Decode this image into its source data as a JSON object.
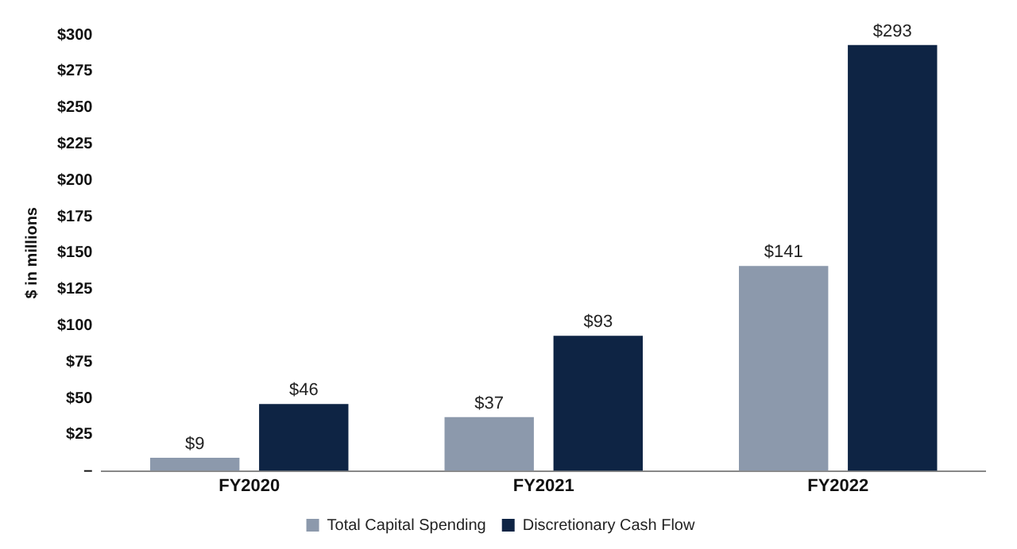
{
  "chart_data": {
    "type": "bar",
    "ylabel": "$ in millions",
    "categories": [
      "FY2020",
      "FY2021",
      "FY2022"
    ],
    "series": [
      {
        "name": "Total Capital Spending",
        "color": "#8c99ac",
        "values": [
          9,
          37,
          141
        ],
        "value_labels": [
          "$9",
          "$37",
          "$141"
        ]
      },
      {
        "name": "Discretionary Cash Flow",
        "color": "#0e2444",
        "values": [
          46,
          93,
          293
        ],
        "value_labels": [
          "$46",
          "$93",
          "$293"
        ]
      }
    ],
    "ylim": [
      0,
      300
    ],
    "yticks": [
      {
        "value": 0,
        "label": "–"
      },
      {
        "value": 25,
        "label": "$25"
      },
      {
        "value": 50,
        "label": "$50"
      },
      {
        "value": 75,
        "label": "$75"
      },
      {
        "value": 100,
        "label": "$100"
      },
      {
        "value": 125,
        "label": "$125"
      },
      {
        "value": 150,
        "label": "$150"
      },
      {
        "value": 175,
        "label": "$175"
      },
      {
        "value": 200,
        "label": "$200"
      },
      {
        "value": 225,
        "label": "$225"
      },
      {
        "value": 250,
        "label": "$250"
      },
      {
        "value": 275,
        "label": "$275"
      },
      {
        "value": 300,
        "label": "$300"
      }
    ],
    "grid": false,
    "legend": "bottom"
  }
}
